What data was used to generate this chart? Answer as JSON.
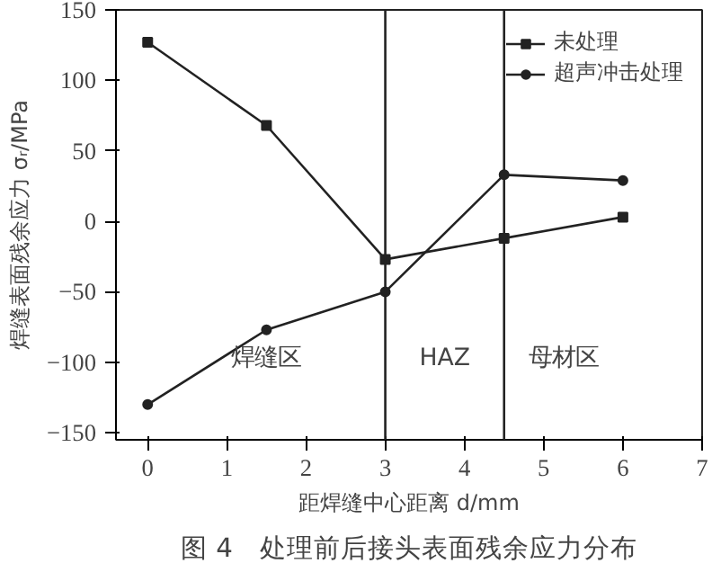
{
  "chart_data": {
    "type": "line",
    "title": "图 4　处理前后接头表面残余应力分布",
    "xlabel": "距焊缝中心距离 d/mm",
    "ylabel": "焊缝表面残余应力 σᵣ/MPa",
    "x": [
      0,
      1.5,
      3,
      4.5,
      6
    ],
    "series": [
      {
        "name": "未处理",
        "color": "#222222",
        "marker": "square",
        "values": [
          127,
          68,
          -27,
          -12,
          3
        ]
      },
      {
        "name": "超声冲击处理",
        "color": "#222222",
        "marker": "circle",
        "values": [
          -130,
          -77,
          -50,
          33,
          29
        ]
      }
    ],
    "xlim": [
      -0.4,
      7
    ],
    "ylim": [
      -155,
      150
    ],
    "xticks": [
      0,
      1,
      2,
      3,
      4,
      5,
      6,
      7
    ],
    "yticks": [
      -150,
      -100,
      -50,
      0,
      50,
      100,
      150
    ],
    "ref_lines": [
      {
        "axis": "x",
        "value": 3,
        "label": null,
        "color": "#222222"
      },
      {
        "axis": "x",
        "value": 4.5,
        "label": null,
        "color": "#222222"
      }
    ],
    "annotations": [
      "焊缝区",
      "HAZ",
      "母材区"
    ],
    "grid": false,
    "legend": "top right",
    "line_style": "solid"
  }
}
